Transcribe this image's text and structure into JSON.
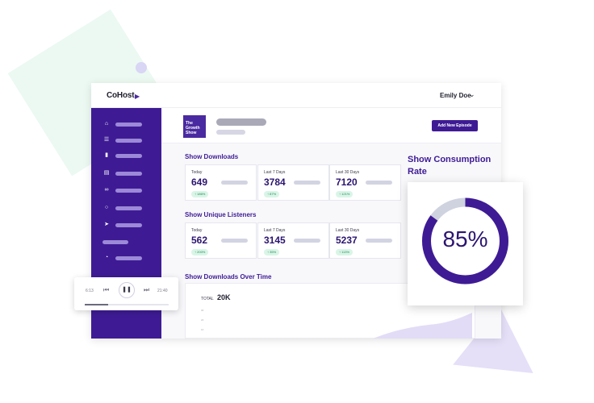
{
  "colors": {
    "brand": "#3e1b94",
    "accent_light": "#9c89d8",
    "success": "#1f8a56"
  },
  "topbar": {
    "logo": "CoHost",
    "user_name": "Emily Doe"
  },
  "sidebar": {
    "icons": [
      "home-icon",
      "list-icon",
      "bar-chart-icon",
      "document-icon",
      "link-icon",
      "globe-icon",
      "send-icon",
      "help-icon"
    ]
  },
  "show": {
    "cover_text": "The Growth Show",
    "add_button": "Add New Episode"
  },
  "downloads": {
    "title": "Show Downloads",
    "cards": [
      {
        "label": "Today",
        "value": "649",
        "change": "186%"
      },
      {
        "label": "Last 7 Days",
        "value": "3784",
        "change": "87%"
      },
      {
        "label": "Last 30 Days",
        "value": "7120",
        "change": "121%"
      }
    ]
  },
  "listeners": {
    "title": "Show Unique Listeners",
    "cards": [
      {
        "label": "Today",
        "value": "562",
        "change": "200%"
      },
      {
        "label": "Last 7 Days",
        "value": "3145",
        "change": "35%"
      },
      {
        "label": "Last 30 Days",
        "value": "5237",
        "change": "113%"
      }
    ]
  },
  "over_time": {
    "title": "Show Downloads Over Time",
    "total_label": "TOTAL",
    "total": "20K",
    "y_ticks": [
      "30",
      "20",
      "10"
    ]
  },
  "consumption": {
    "title": "Show Consumption Rate",
    "rate": 0.85,
    "rate_label": "85%"
  },
  "player": {
    "elapsed": "6:13",
    "duration": "21:40",
    "progress": 0.28
  }
}
